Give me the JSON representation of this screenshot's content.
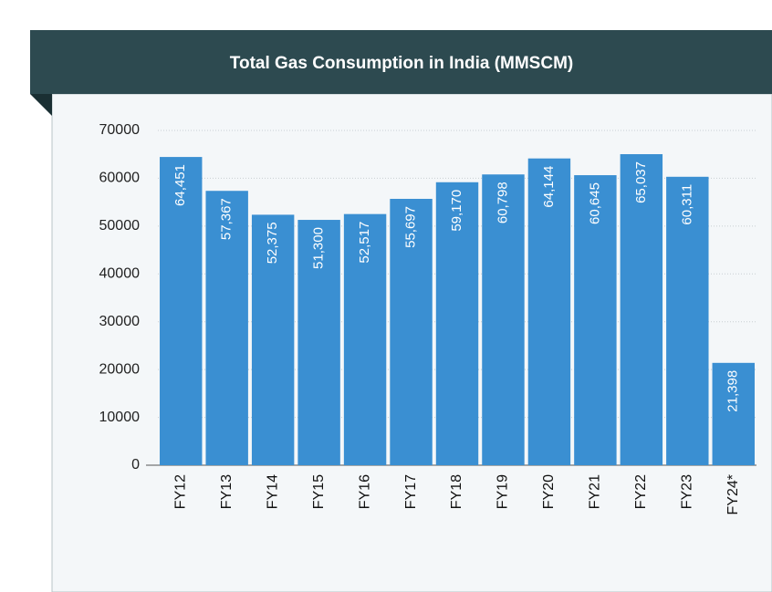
{
  "chart_data": {
    "type": "bar",
    "title": "Total Gas Consumption in India (MMSCM)",
    "categories": [
      "FY12",
      "FY13",
      "FY14",
      "FY15",
      "FY16",
      "FY17",
      "FY18",
      "FY19",
      "FY20",
      "FY21",
      "FY22",
      "FY23",
      "FY24*"
    ],
    "values": [
      64451,
      57367,
      52375,
      51300,
      52517,
      55697,
      59170,
      60798,
      64144,
      60645,
      65037,
      60311,
      21398
    ],
    "value_labels": [
      "64,451",
      "57,367",
      "52,375",
      "51,300",
      "52,517",
      "55,697",
      "59,170",
      "60,798",
      "64,144",
      "60,645",
      "65,037",
      "60,311",
      "21,398"
    ],
    "color": "#3a8fd2",
    "ylim": [
      0,
      70000
    ],
    "yticks": [
      0,
      10000,
      20000,
      30000,
      40000,
      50000,
      60000,
      70000
    ],
    "grid": true
  }
}
